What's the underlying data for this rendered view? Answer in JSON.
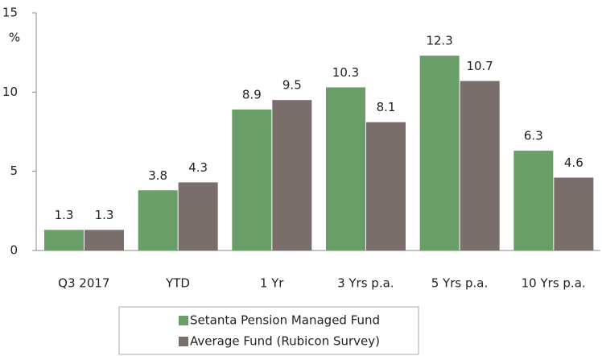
{
  "chart_data": {
    "type": "bar",
    "y_label": "%",
    "categories": [
      "Q3 2017",
      "YTD",
      "1 Yr",
      "3 Yrs p.a.",
      "5 Yrs p.a.",
      "10 Yrs p.a."
    ],
    "series": [
      {
        "name": "Setanta Pension Managed Fund",
        "color": "#6a9e68",
        "values": [
          1.3,
          3.8,
          8.9,
          10.3,
          12.3,
          6.3
        ]
      },
      {
        "name": "Average Fund (Rubicon Survey)",
        "color": "#7a6e6c",
        "values": [
          1.3,
          4.3,
          9.5,
          8.1,
          10.7,
          4.6
        ]
      }
    ],
    "ylim": [
      0,
      15
    ],
    "yticks": [
      0,
      5,
      10,
      15
    ],
    "grid": false,
    "legend": "bottom"
  }
}
